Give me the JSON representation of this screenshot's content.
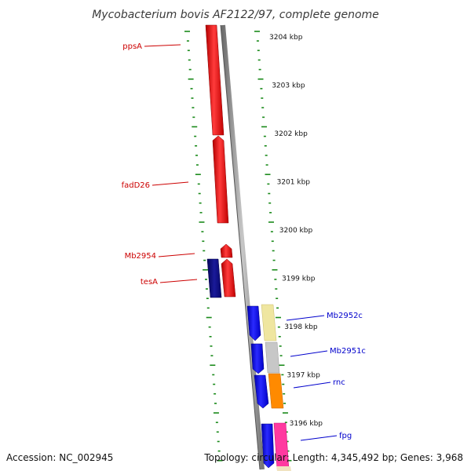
{
  "title": "Mycobacterium bovis AF2122/97, complete genome",
  "footer": {
    "accession": "Accession: NC_002945",
    "summary": "Topology: circular; Length: 4,345,492 bp; Genes: 3,968"
  },
  "ruler": {
    "labels": [
      "3204 kbp",
      "3203 kbp",
      "3202 kbp",
      "3201 kbp",
      "3200 kbp",
      "3199 kbp",
      "3198 kbp",
      "3197 kbp",
      "3196 kbp"
    ]
  },
  "gene_labels": [
    {
      "name": "ppsA",
      "strand": "forward"
    },
    {
      "name": "fadD26",
      "strand": "forward"
    },
    {
      "name": "Mb2954",
      "strand": "forward"
    },
    {
      "name": "tesA",
      "strand": "forward"
    },
    {
      "name": "Mb2952c",
      "strand": "reverse"
    },
    {
      "name": "Mb2951c",
      "strand": "reverse"
    },
    {
      "name": "rnc",
      "strand": "reverse"
    },
    {
      "name": "fpg",
      "strand": "reverse"
    }
  ],
  "colors": {
    "forward_label": "#cc0000",
    "reverse_label": "#0000cc",
    "forward_gene": "#ff0000",
    "forward_gene_dark": "#0a0a80",
    "reverse_gene": "#0000ff",
    "tick": "#1a8a1a",
    "backbone": "#8a8a8a"
  }
}
